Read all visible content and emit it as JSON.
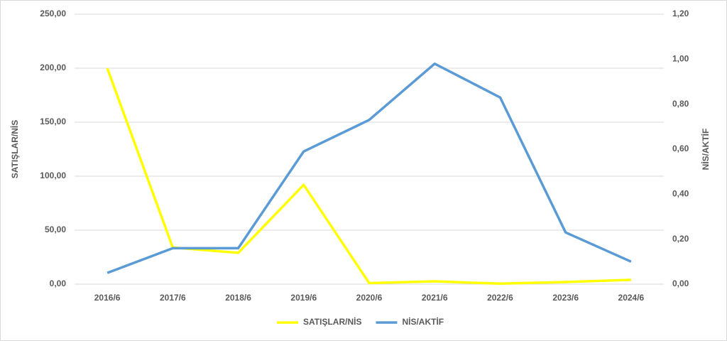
{
  "chart_data": {
    "type": "line",
    "categories": [
      "2016/6",
      "2017/6",
      "2018/6",
      "2019/6",
      "2020/6",
      "2021/6",
      "2022/6",
      "2023/6",
      "2024/6"
    ],
    "series": [
      {
        "name": "SATIŞLAR/NİS",
        "color": "#ffff00",
        "values": [
          200,
          34,
          29,
          92,
          1,
          2.6,
          0.5,
          2,
          4
        ]
      },
      {
        "name": "NİS/AKTİF",
        "color": "#5b9bd5",
        "axis": "y2",
        "values": [
          0.05,
          0.16,
          0.16,
          0.59,
          0.73,
          0.98,
          0.83,
          0.23,
          0.1
        ]
      }
    ],
    "ylabel": "SATIŞLAR/NİS",
    "y2label": "NİS/AKTİF",
    "ylim": [
      0,
      250
    ],
    "yticks": [
      {
        "value": 0,
        "label": "0,00"
      },
      {
        "value": 50,
        "label": "50,00"
      },
      {
        "value": 100,
        "label": "100,00"
      },
      {
        "value": 150,
        "label": "150,00"
      },
      {
        "value": 200,
        "label": "200,00"
      },
      {
        "value": 250,
        "label": "250,00"
      }
    ],
    "y2lim": [
      0,
      1.2
    ],
    "y2ticks": [
      {
        "value": 0,
        "label": "0,00"
      },
      {
        "value": 0.2,
        "label": "0,20"
      },
      {
        "value": 0.4,
        "label": "0,40"
      },
      {
        "value": 0.6,
        "label": "0,60"
      },
      {
        "value": 0.8,
        "label": "0,80"
      },
      {
        "value": 1,
        "label": "1,00"
      },
      {
        "value": 1.2,
        "label": "1,20"
      }
    ],
    "grid": true,
    "legend": "bottom"
  }
}
